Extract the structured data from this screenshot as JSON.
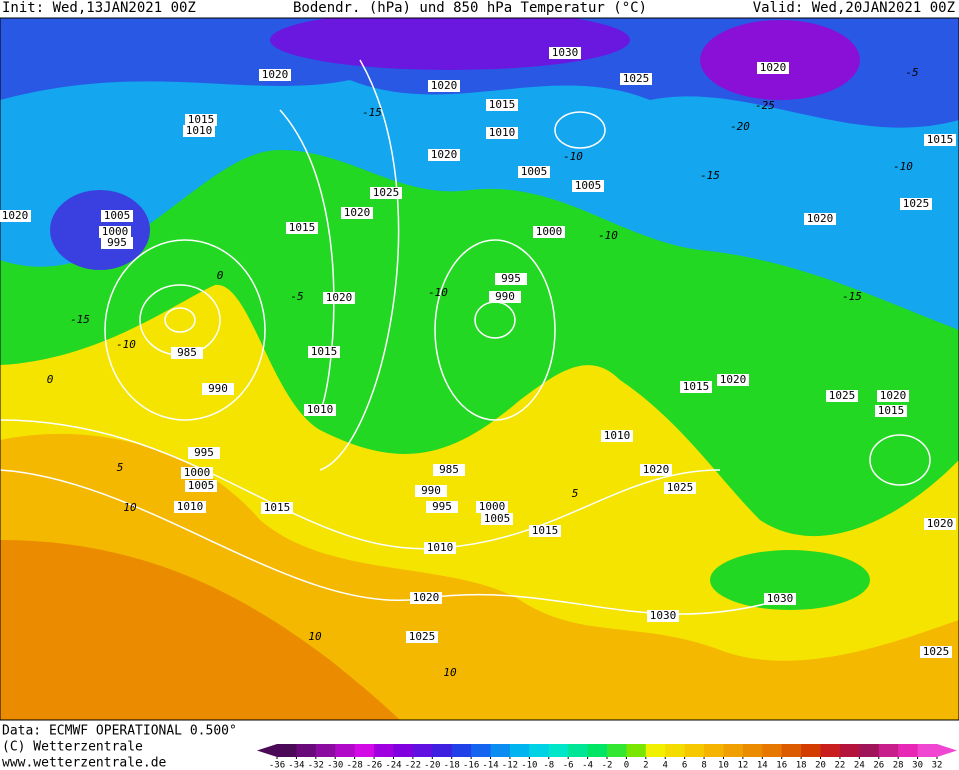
{
  "header": {
    "init": "Init: Wed,13JAN2021 00Z",
    "title": "Bodendr. (hPa) und 850 hPa Temperatur (°C)",
    "valid": "Valid: Wed,20JAN2021 00Z"
  },
  "footer": {
    "lines": [
      "Data: ECMWF OPERATIONAL 0.500°",
      "(C) Wetterzentrale",
      "www.wetterzentrale.de"
    ]
  },
  "isobar_labels": [
    "1020",
    "1020",
    "1030",
    "1025",
    "1020",
    "1015",
    "1010",
    "1015",
    "1010",
    "1020",
    "1015",
    "1005",
    "1005",
    "1025",
    "1020",
    "1015",
    "1020",
    "1025",
    "1005",
    "1000",
    "995",
    "1020",
    "1000",
    "995",
    "990",
    "1020",
    "985",
    "1015",
    "990",
    "1015",
    "1020",
    "1025",
    "1020",
    "1015",
    "1010",
    "1010",
    "995",
    "1000",
    "1005",
    "985",
    "1020",
    "990",
    "1025",
    "1010",
    "1015",
    "995",
    "1000",
    "1005",
    "1015",
    "1020",
    "1010",
    "1020",
    "1030",
    "1030",
    "1025",
    "1025"
  ],
  "temperature_labels": [
    "0",
    "-5",
    "0",
    "5",
    "10",
    "-10",
    "-15",
    "-10",
    "-10",
    "-15",
    "-20",
    "-25",
    "-15",
    "-10",
    "-15",
    "-5",
    "10",
    "10",
    "5",
    "-10"
  ],
  "colorbar": {
    "ticks": [
      -36,
      -34,
      -32,
      -30,
      -28,
      -26,
      -24,
      -22,
      -20,
      -18,
      -16,
      -14,
      -12,
      -10,
      -8,
      -6,
      -4,
      -2,
      0,
      2,
      4,
      6,
      8,
      10,
      12,
      14,
      16,
      18,
      20,
      22,
      24,
      26,
      28,
      30,
      32
    ],
    "colors": [
      "#4b0a57",
      "#6a0a7a",
      "#8b0aa0",
      "#b00ac8",
      "#d20ae6",
      "#a000e0",
      "#8000e0",
      "#6010e0",
      "#4020e0",
      "#2040e8",
      "#1464f0",
      "#0a8cf0",
      "#00b4f0",
      "#00d2e6",
      "#00e6c8",
      "#00e696",
      "#00e664",
      "#32e632",
      "#7ae600",
      "#f0f000",
      "#f5dc00",
      "#f5c800",
      "#f5b400",
      "#f0a000",
      "#eb8c00",
      "#e67800",
      "#dc5a00",
      "#d23c00",
      "#c81e1e",
      "#b4143c",
      "#a0145a",
      "#c81e8c",
      "#e628b4",
      "#f046d2"
    ]
  }
}
